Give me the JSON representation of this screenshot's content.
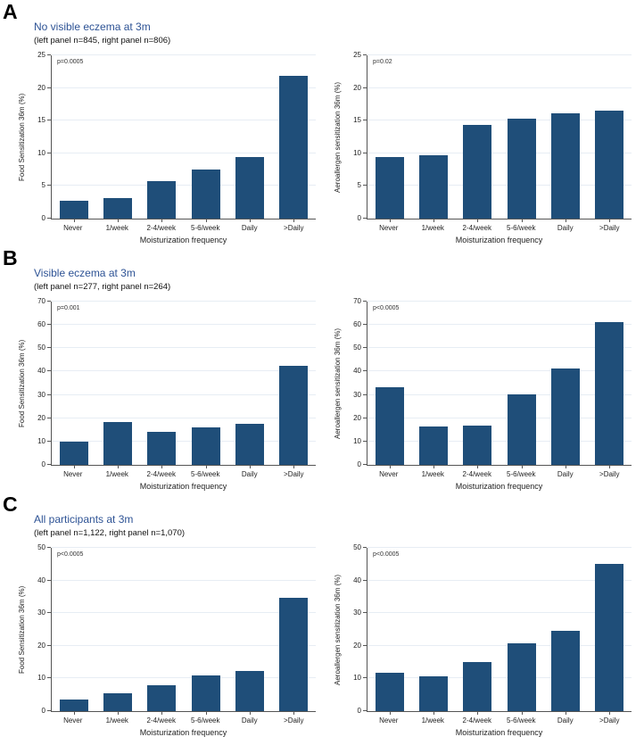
{
  "figure": {
    "xlabel": "Moisturization frequency",
    "categories": [
      "Never",
      "1/week",
      "2-4/week",
      "5-6/week",
      "Daily",
      ">Daily"
    ],
    "bar_color": "#1f4e79",
    "title_color": "#2e5395",
    "gridline_color": "#e7edf4"
  },
  "sections": [
    {
      "letter": "A",
      "title": "No visible eczema at 3m",
      "subtitle": "(left panel n=845, right panel n=806)"
    },
    {
      "letter": "B",
      "title": "Visible eczema at 3m",
      "subtitle": "(left panel n=277, right panel n=264)"
    },
    {
      "letter": "C",
      "title": "All participants at 3m",
      "subtitle": "(left panel n=1,122, right panel n=1,070)"
    }
  ],
  "chart_data": [
    {
      "type": "bar",
      "panel": "A-left",
      "group": "No visible eczema at 3m",
      "n": 845,
      "p_label": "p=0.0005",
      "ylabel": "Food Sensitization 36m (%)",
      "xlabel": "Moisturization frequency",
      "categories": [
        "Never",
        "1/week",
        "2-4/week",
        "5-6/week",
        "Daily",
        ">Daily"
      ],
      "values": [
        2.8,
        3.2,
        5.7,
        7.5,
        9.4,
        21.9
      ],
      "ylim": [
        0,
        25
      ],
      "ytick_step": 5,
      "grid": "horizontal",
      "legend": "none"
    },
    {
      "type": "bar",
      "panel": "A-right",
      "group": "No visible eczema at 3m",
      "n": 806,
      "p_label": "p=0.02",
      "ylabel": "Aeroallergen sensitization 36m (%)",
      "xlabel": "Moisturization frequency",
      "categories": [
        "Never",
        "1/week",
        "2-4/week",
        "5-6/week",
        "Daily",
        ">Daily"
      ],
      "values": [
        9.4,
        9.7,
        14.3,
        15.3,
        16.1,
        16.6
      ],
      "ylim": [
        0,
        25
      ],
      "ytick_step": 5,
      "grid": "horizontal",
      "legend": "none"
    },
    {
      "type": "bar",
      "panel": "B-left",
      "group": "Visible eczema at 3m",
      "n": 277,
      "p_label": "p=0.001",
      "ylabel": "Food Sensitization 36m (%)",
      "xlabel": "Moisturization frequency",
      "categories": [
        "Never",
        "1/week",
        "2-4/week",
        "5-6/week",
        "Daily",
        ">Daily"
      ],
      "values": [
        10.0,
        18.4,
        14.3,
        16.0,
        17.6,
        42.6
      ],
      "ylim": [
        0,
        70
      ],
      "ytick_step": 10,
      "grid": "horizontal",
      "legend": "none"
    },
    {
      "type": "bar",
      "panel": "B-right",
      "group": "Visible eczema at 3m",
      "n": 264,
      "p_label": "p<0.0005",
      "ylabel": "Aeroallergen sensitization 36m (%)",
      "xlabel": "Moisturization frequency",
      "categories": [
        "Never",
        "1/week",
        "2-4/week",
        "5-6/week",
        "Daily",
        ">Daily"
      ],
      "values": [
        33.3,
        16.3,
        17.0,
        30.4,
        41.4,
        61.2
      ],
      "ylim": [
        0,
        70
      ],
      "ytick_step": 10,
      "grid": "horizontal",
      "legend": "none"
    },
    {
      "type": "bar",
      "panel": "C-left",
      "group": "All participants at 3m",
      "n": 1122,
      "p_label": "p<0.0005",
      "ylabel": "Food Sensitization 36m (%)",
      "xlabel": "Moisturization frequency",
      "categories": [
        "Never",
        "1/week",
        "2-4/week",
        "5-6/week",
        "Daily",
        ">Daily"
      ],
      "values": [
        3.5,
        5.5,
        8.0,
        10.8,
        12.2,
        34.8
      ],
      "ylim": [
        0,
        50
      ],
      "ytick_step": 10,
      "grid": "horizontal",
      "legend": "none"
    },
    {
      "type": "bar",
      "panel": "C-right",
      "group": "All participants at 3m",
      "n": 1070,
      "p_label": "p<0.0005",
      "ylabel": "Aeroallergen sensitization 36m (%)",
      "xlabel": "Moisturization frequency",
      "categories": [
        "Never",
        "1/week",
        "2-4/week",
        "5-6/week",
        "Daily",
        ">Daily"
      ],
      "values": [
        11.8,
        10.7,
        15.0,
        20.9,
        24.5,
        45.2
      ],
      "ylim": [
        0,
        50
      ],
      "ytick_step": 10,
      "grid": "horizontal",
      "legend": "none"
    }
  ]
}
